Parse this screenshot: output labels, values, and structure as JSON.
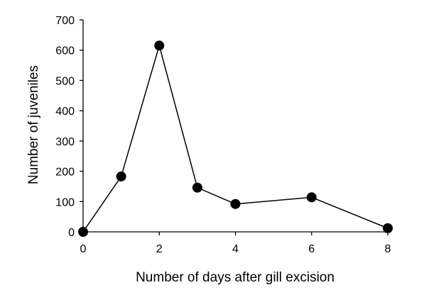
{
  "chart_data": {
    "type": "line",
    "title": "",
    "xlabel": "Number of days after gill excision",
    "ylabel": "Number of juveniles",
    "xlim": [
      0,
      8
    ],
    "ylim": [
      0,
      700
    ],
    "xticks": [
      0,
      2,
      4,
      6,
      8
    ],
    "yticks": [
      0,
      100,
      200,
      300,
      400,
      500,
      600,
      700
    ],
    "grid": false,
    "legend": "none",
    "marker_color": "#000000",
    "line_color": "#000000",
    "series": [
      {
        "x": [
          0,
          1,
          2,
          3,
          4,
          6,
          8
        ],
        "y": [
          0,
          183,
          615,
          146,
          92,
          114,
          12
        ]
      }
    ]
  }
}
